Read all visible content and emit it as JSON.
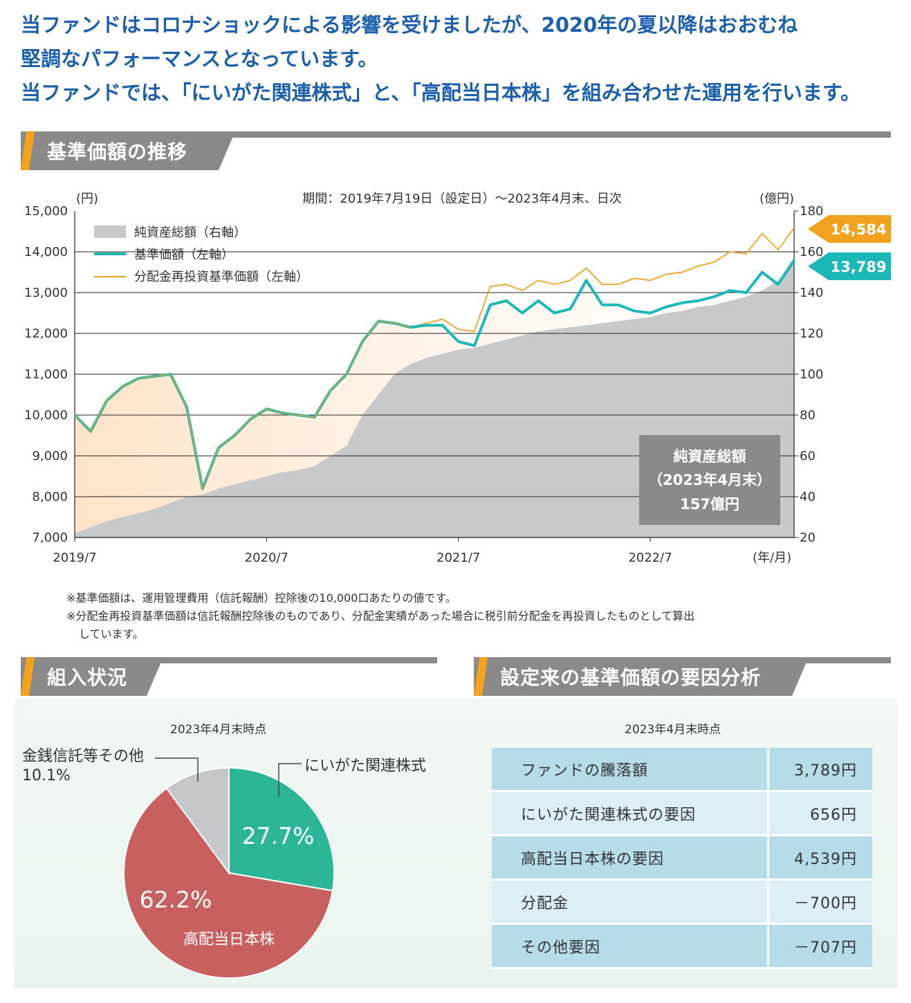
{
  "headline": {
    "line1": "当ファンドはコロナショックによる影響を受けましたが、2020年の夏以降はおおむね",
    "line2": "堅調なパフォーマンスとなっています。",
    "line3": "当ファンドでは、「にいがた関連株式」と、「高配当日本株」を組み合わせた運用を行います。"
  },
  "sections": {
    "nav_title": "基準価額の推移",
    "holdings_title": "組入状況",
    "factors_title": "設定来の基準価額の要因分析"
  },
  "colors": {
    "teal": "#1cb7b7",
    "orange": "#f0a21e",
    "gray_area": "#c8c9cb",
    "pie_green": "#2db597",
    "pie_red": "#c96060",
    "pie_gray": "#c6c7c9",
    "header_gray": "#8a8a8a",
    "accent": "#f4a21c",
    "headline_blue": "#1b5fae"
  },
  "chart_data": [
    {
      "type": "line",
      "period": "期間：2019年7月19日（設定日）～2023年4月末、日次",
      "y_left_unit": "(円)",
      "y_right_unit": "(億円)",
      "x_unit": "(年/月)",
      "y_left_range": [
        7000,
        15000
      ],
      "y_right_range": [
        20,
        180
      ],
      "y_left_ticks": [
        "7,000",
        "8,000",
        "9,000",
        "10,000",
        "11,000",
        "12,000",
        "13,000",
        "14,000",
        "15,000"
      ],
      "y_right_ticks": [
        "20",
        "40",
        "60",
        "80",
        "100",
        "120",
        "140",
        "160",
        "180"
      ],
      "x_ticks": [
        "2019/7",
        "2020/7",
        "2021/7",
        "2022/7"
      ],
      "grid": "horizontal",
      "legend_position": "top-left",
      "legend": [
        "純資産総額（右軸）",
        "基準価額（左軸）",
        "分配金再投資基準価額（左軸）"
      ],
      "x": [
        "2019-07",
        "2019-08",
        "2019-09",
        "2019-10",
        "2019-11",
        "2019-12",
        "2020-01",
        "2020-02",
        "2020-03",
        "2020-04",
        "2020-05",
        "2020-06",
        "2020-07",
        "2020-08",
        "2020-09",
        "2020-10",
        "2020-11",
        "2020-12",
        "2021-01",
        "2021-02",
        "2021-03",
        "2021-04",
        "2021-05",
        "2021-06",
        "2021-07",
        "2021-08",
        "2021-09",
        "2021-10",
        "2021-11",
        "2021-12",
        "2022-01",
        "2022-02",
        "2022-03",
        "2022-04",
        "2022-05",
        "2022-06",
        "2022-07",
        "2022-08",
        "2022-09",
        "2022-10",
        "2022-11",
        "2022-12",
        "2023-01",
        "2023-02",
        "2023-03",
        "2023-04"
      ],
      "series": [
        {
          "name": "純資産総額（右軸）",
          "axis": "right",
          "style": "area",
          "values": [
            22,
            25,
            28,
            30,
            32,
            34,
            37,
            40,
            41,
            44,
            46,
            48,
            50,
            52,
            53,
            55,
            60,
            65,
            80,
            90,
            100,
            105,
            108,
            110,
            112,
            113,
            115,
            117,
            119,
            121,
            122,
            123,
            124,
            125,
            126,
            127,
            128,
            130,
            131,
            133,
            134,
            136,
            138,
            141,
            146,
            157
          ]
        },
        {
          "name": "基準価額（左軸）",
          "axis": "left",
          "style": "line",
          "values": [
            10000,
            9600,
            10350,
            10700,
            10900,
            10950,
            11000,
            10200,
            8200,
            9200,
            9500,
            9900,
            10150,
            10050,
            10000,
            9950,
            10600,
            11000,
            11800,
            12300,
            12250,
            12150,
            12200,
            12200,
            11800,
            11700,
            12700,
            12800,
            12500,
            12800,
            12500,
            12600,
            13300,
            12700,
            12700,
            12550,
            12500,
            12650,
            12750,
            12800,
            12900,
            13050,
            13000,
            13500,
            13200,
            13789
          ]
        },
        {
          "name": "分配金再投資基準価額（左軸）",
          "axis": "left",
          "style": "line",
          "values": [
            10000,
            9600,
            10350,
            10700,
            10900,
            10950,
            11000,
            10200,
            8200,
            9200,
            9500,
            9900,
            10150,
            10050,
            10000,
            9950,
            10600,
            11000,
            11800,
            12300,
            12250,
            12150,
            12250,
            12350,
            12100,
            12050,
            13150,
            13200,
            13050,
            13300,
            13200,
            13300,
            13600,
            13200,
            13200,
            13350,
            13300,
            13450,
            13500,
            13650,
            13750,
            14000,
            13950,
            14450,
            14050,
            14584
          ]
        }
      ],
      "end_labels": {
        "reinvested": "14,584",
        "nav": "13,789"
      },
      "net_assets_box": {
        "line1": "純資産総額",
        "line2": "（2023年4月末）",
        "line3": "157億円"
      }
    },
    {
      "type": "pie",
      "as_of": "2023年4月末時点",
      "slices": [
        {
          "label": "にいがた関連株式",
          "value": 27.7,
          "value_text": "27.7%",
          "color": "#2db597"
        },
        {
          "label": "高配当日本株",
          "value": 62.2,
          "value_text": "62.2%",
          "color": "#c96060"
        },
        {
          "label": "金銭信託等その他",
          "value": 10.1,
          "value_text": "10.1%",
          "color": "#c6c7c9"
        }
      ]
    },
    {
      "type": "table",
      "as_of": "2023年4月末時点",
      "rows": [
        {
          "label": "ファンドの騰落額",
          "value": "3,789円"
        },
        {
          "label": "にいがた関連株式の要因",
          "value": "656円"
        },
        {
          "label": "高配当日本株の要因",
          "value": "4,539円"
        },
        {
          "label": "分配金",
          "value": "－700円"
        },
        {
          "label": "その他要因",
          "value": "－707円"
        }
      ]
    }
  ],
  "notes": {
    "note1": "※基準価額は、運用管理費用（信託報酬）控除後の10,000口あたりの値です。",
    "note2a": "※分配金再投資基準価額は信託報酬控除後のものであり、分配金実績があった場合に税引前分配金を再投資したものとして算出",
    "note2b": "しています。"
  }
}
